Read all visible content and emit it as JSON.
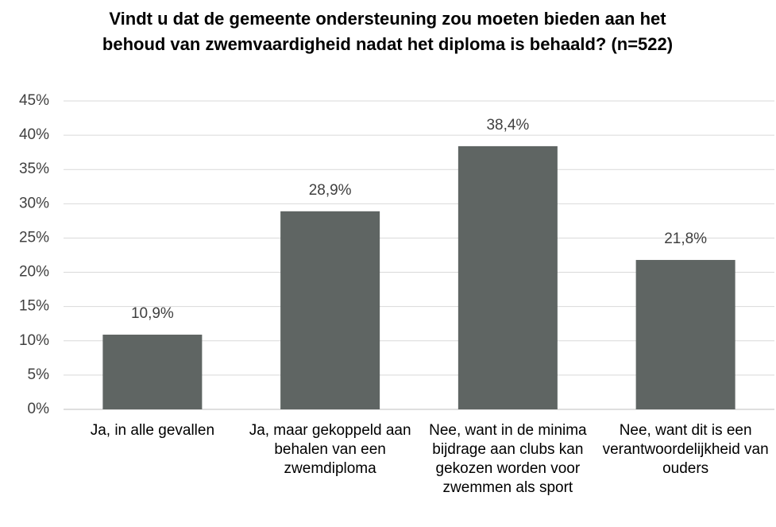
{
  "chart_data": {
    "type": "bar",
    "title": "Vindt u dat de gemeente ondersteuning zou moeten bieden aan het behoud van zwemvaardigheid nadat het diploma is behaald? (n=522)",
    "categories": [
      "Ja, in alle gevallen",
      "Ja, maar gekoppeld aan behalen van een zwemdiploma",
      "Nee, want in de minima bijdrage aan clubs kan gekozen worden voor zwemmen als sport",
      "Nee, want dit is een verantwoordelijkheid van ouders"
    ],
    "values": [
      10.9,
      28.9,
      38.4,
      21.8
    ],
    "value_labels": [
      "10,9%",
      "28,9%",
      "38,4%",
      "21,8%"
    ],
    "color": "#5f6563",
    "ylim": [
      0,
      45
    ],
    "yticks": [
      {
        "value": 0,
        "label": "0%"
      },
      {
        "value": 5,
        "label": "5%"
      },
      {
        "value": 10,
        "label": "10%"
      },
      {
        "value": 15,
        "label": "15%"
      },
      {
        "value": 20,
        "label": "20%"
      },
      {
        "value": 25,
        "label": "25%"
      },
      {
        "value": 30,
        "label": "30%"
      },
      {
        "value": 35,
        "label": "35%"
      },
      {
        "value": 40,
        "label": "40%"
      },
      {
        "value": 45,
        "label": "45%"
      }
    ],
    "grid": true
  }
}
